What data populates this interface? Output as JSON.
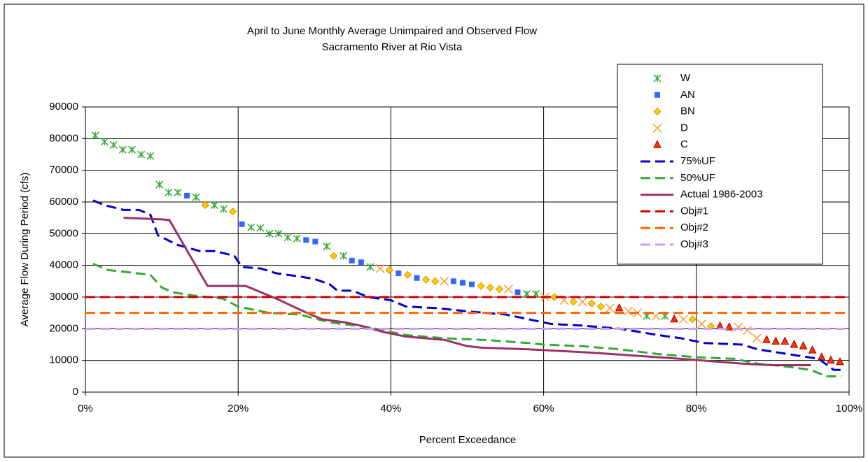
{
  "chart_data": {
    "type": "scatter",
    "title": "April to June Monthly Average Unimpaired and Observed Flow",
    "subtitle": "Sacramento River at Rio Vista",
    "x_label": "Percent Exceedance",
    "y_label": "Average Flow During Period (cfs)",
    "xlim": [
      0,
      100
    ],
    "ylim": [
      0,
      90000
    ],
    "xticks": [
      {
        "value": 0,
        "label": "0%"
      },
      {
        "value": 20,
        "label": "20%"
      },
      {
        "value": 40,
        "label": "40%"
      },
      {
        "value": 60,
        "label": "60%"
      },
      {
        "value": 80,
        "label": "80%"
      },
      {
        "value": 100,
        "label": "100%"
      }
    ],
    "yticks": [
      0,
      10000,
      20000,
      30000,
      40000,
      50000,
      60000,
      70000,
      80000,
      90000
    ],
    "grid": true,
    "legend": "upper right",
    "series": [
      {
        "name": "W",
        "color": "#33aa33",
        "marker": "asterisk",
        "x": [
          1.3,
          2.5,
          3.7,
          4.9,
          6.1,
          7.3,
          8.5,
          9.7,
          10.9,
          12.1,
          14.5,
          16.9,
          18.1,
          21.7,
          22.9,
          24.1,
          25.3,
          26.5,
          27.7,
          31.6,
          33.8,
          37.3,
          57.8,
          59,
          73.5,
          75.9
        ],
        "values": [
          81000,
          79000,
          78000,
          76500,
          76500,
          75000,
          74500,
          65500,
          63000,
          63000,
          61500,
          59000,
          57800,
          52000,
          51800,
          50000,
          50000,
          48800,
          48500,
          46000,
          43000,
          39500,
          31000,
          31000,
          24000,
          24000
        ]
      },
      {
        "name": "AN",
        "color": "#3366ff",
        "marker": "square",
        "x": [
          13.3,
          20.5,
          28.9,
          30.1,
          34.9,
          36.1,
          41,
          43.4,
          48.2,
          49.4,
          50.6,
          56.6
        ],
        "values": [
          62000,
          53000,
          48000,
          47500,
          41500,
          41000,
          37500,
          36000,
          35000,
          34500,
          34000,
          31500
        ]
      },
      {
        "name": "BN",
        "color": "#ffcc00",
        "marker": "diamond",
        "x": [
          15.7,
          19.3,
          32.5,
          39.8,
          42.2,
          44.6,
          45.8,
          51.8,
          53,
          54.2,
          61.4,
          63.9,
          66.3,
          67.5,
          79.5,
          81.9
        ],
        "values": [
          59000,
          57000,
          43000,
          38500,
          37000,
          35500,
          35000,
          33500,
          33000,
          32500,
          30000,
          28500,
          28000,
          27000,
          23000,
          20800
        ]
      },
      {
        "name": "D",
        "color": "#ff9933",
        "marker": "x",
        "x": [
          38.6,
          47,
          55.4,
          60.2,
          62.7,
          65.1,
          68.7,
          71.1,
          72.3,
          74.7,
          78.3,
          80.7,
          85.5,
          86.7,
          87.9
        ],
        "values": [
          39000,
          35000,
          32500,
          30000,
          29000,
          28500,
          26500,
          25500,
          25000,
          24000,
          23000,
          21500,
          20500,
          19500,
          17000
        ]
      },
      {
        "name": "C",
        "color": "#ff3300",
        "marker": "triangle",
        "x": [
          69.9,
          77.1,
          83.1,
          84.3,
          89.2,
          90.4,
          91.6,
          92.8,
          94,
          95.2,
          96.4,
          97.6,
          98.8
        ],
        "values": [
          26500,
          23000,
          20800,
          20500,
          16500,
          16000,
          16000,
          15000,
          14500,
          13200,
          11000,
          10000,
          9500
        ]
      },
      {
        "name": "75%UF",
        "color": "#0000cc",
        "line": "dashed",
        "x": [
          1,
          2.5,
          5,
          7,
          8.5,
          9.5,
          12,
          15,
          17,
          19.5,
          20.5,
          23,
          25,
          28,
          30,
          32,
          33,
          35,
          37,
          40,
          42,
          46,
          50,
          55,
          58,
          61,
          65,
          70,
          75,
          78,
          81,
          86,
          88,
          92,
          96,
          98,
          99
        ],
        "values": [
          60500,
          59000,
          57500,
          57500,
          56000,
          49500,
          46500,
          44500,
          44500,
          43000,
          39500,
          39000,
          37500,
          36500,
          35700,
          34000,
          32000,
          32000,
          30000,
          29000,
          27000,
          26500,
          25500,
          24500,
          23000,
          21500,
          21000,
          20000,
          18000,
          17000,
          15500,
          15000,
          13500,
          12000,
          10500,
          7000,
          7000
        ]
      },
      {
        "name": "50%UF",
        "color": "#33aa33",
        "line": "dashed",
        "x": [
          1,
          3,
          5,
          8.5,
          10,
          11.5,
          14,
          18,
          20,
          24,
          28,
          32,
          37,
          42,
          47,
          52,
          58,
          60,
          65,
          70,
          75,
          80,
          85,
          88,
          92,
          95,
          97,
          99
        ],
        "values": [
          40500,
          38500,
          38000,
          37000,
          33000,
          31500,
          30500,
          29500,
          27000,
          25000,
          24500,
          22000,
          20500,
          18000,
          17000,
          16500,
          15500,
          15000,
          14500,
          13500,
          12000,
          11000,
          10500,
          9000,
          8000,
          7000,
          5000,
          5000
        ]
      },
      {
        "name": "Actual 1986-2003",
        "color": "#993366",
        "line": "solid",
        "x": [
          5,
          10,
          11,
          16,
          21,
          25,
          29,
          31,
          34,
          36,
          39,
          42,
          47,
          50,
          52,
          58,
          66,
          72,
          78,
          86,
          90,
          95
        ],
        "values": [
          55000,
          54500,
          54300,
          33500,
          33500,
          29500,
          25000,
          23000,
          22000,
          21000,
          19000,
          17500,
          16500,
          14500,
          14000,
          13500,
          12500,
          11500,
          10500,
          9000,
          8500,
          8500
        ]
      },
      {
        "name": "Obj#1",
        "color": "#cc0000",
        "line": "dashed",
        "x": [
          0,
          100
        ],
        "values": [
          30000,
          30000
        ]
      },
      {
        "name": "Obj#2",
        "color": "#ff6600",
        "line": "dashed",
        "x": [
          0,
          100
        ],
        "values": [
          25000,
          25000
        ]
      },
      {
        "name": "Obj#3",
        "color": "#cc99ff",
        "line": "dashed",
        "x": [
          0,
          100
        ],
        "values": [
          20000,
          20000
        ]
      }
    ]
  }
}
